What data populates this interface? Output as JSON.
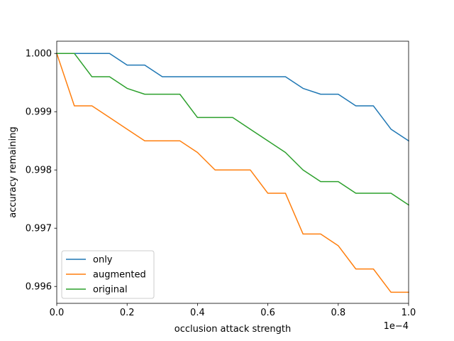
{
  "chart_data": {
    "type": "line",
    "title": "",
    "xlabel": "occlusion attack strength",
    "ylabel": "accuracy remaining",
    "x_offset_label": "1e−4",
    "xlim": [
      0,
      0.0001
    ],
    "ylim": [
      0.99571,
      1.00021
    ],
    "x_ticks": [
      0,
      2e-05,
      4e-05,
      6e-05,
      8e-05,
      0.0001
    ],
    "x_tick_labels": [
      "0.0",
      "0.2",
      "0.4",
      "0.6",
      "0.8",
      "1.0"
    ],
    "y_ticks": [
      0.996,
      0.997,
      0.998,
      0.999,
      1.0
    ],
    "y_tick_labels": [
      "0.996",
      "0.997",
      "0.998",
      "0.999",
      "1.000"
    ],
    "grid": false,
    "legend_position": "lower-left",
    "x": [
      0,
      5e-06,
      1e-05,
      1.5e-05,
      2e-05,
      2.5e-05,
      3e-05,
      3.5e-05,
      4e-05,
      4.5e-05,
      5e-05,
      5.5e-05,
      6e-05,
      6.5e-05,
      7e-05,
      7.5e-05,
      8e-05,
      8.5e-05,
      9e-05,
      9.5e-05,
      0.0001
    ],
    "series": [
      {
        "name": "only",
        "color": "#1f77b4",
        "values": [
          1.0,
          1.0,
          1.0,
          1.0,
          0.9998,
          0.9998,
          0.9996,
          0.9996,
          0.9996,
          0.9996,
          0.9996,
          0.9996,
          0.9996,
          0.9996,
          0.9994,
          0.9993,
          0.9993,
          0.9991,
          0.9991,
          0.9987,
          0.9985
        ]
      },
      {
        "name": "augmented",
        "color": "#ff7f0e",
        "values": [
          1.0,
          0.9991,
          0.9991,
          0.9989,
          0.9987,
          0.9985,
          0.9985,
          0.9985,
          0.9983,
          0.998,
          0.998,
          0.998,
          0.9976,
          0.9976,
          0.9969,
          0.9969,
          0.9967,
          0.9963,
          0.9963,
          0.9959,
          0.9959
        ]
      },
      {
        "name": "original",
        "color": "#2ca02c",
        "values": [
          1.0,
          1.0,
          0.9996,
          0.9996,
          0.9994,
          0.9993,
          0.9993,
          0.9993,
          0.9989,
          0.9989,
          0.9989,
          0.9987,
          0.9985,
          0.9983,
          0.998,
          0.9978,
          0.9978,
          0.9976,
          0.9976,
          0.9976,
          0.9974
        ]
      }
    ]
  }
}
